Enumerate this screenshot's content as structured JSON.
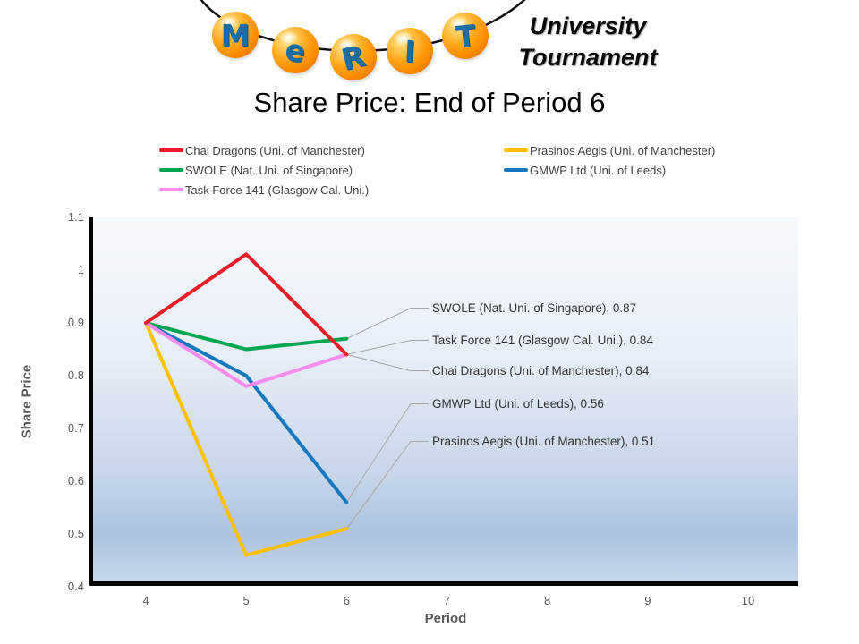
{
  "logo": {
    "letters": [
      "M",
      "e",
      "R",
      "I",
      "T"
    ],
    "tagline_line1": "University",
    "tagline_line2": "Tournament"
  },
  "chart_data": {
    "type": "line",
    "title": "Share Price: End of Period 6",
    "xlabel": "Period",
    "ylabel": "Share Price",
    "x": [
      4,
      5,
      6
    ],
    "x_ticks": [
      "4",
      "5",
      "6",
      "7",
      "8",
      "9",
      "10"
    ],
    "y_ticks": [
      "1.1",
      "1",
      "0.9",
      "0.8",
      "0.7",
      "0.6",
      "0.5",
      "0.4"
    ],
    "xlim": [
      3.5,
      10.5
    ],
    "ylim": [
      0.4,
      1.1
    ],
    "grid": false,
    "legend_position": "top",
    "series": [
      {
        "name": "Chai Dragons (Uni. of Manchester)",
        "color": "#E91D25",
        "values": [
          0.9,
          1.03,
          0.84
        ]
      },
      {
        "name": "SWOLE (Nat. Uni. of Singapore)",
        "color": "#00A550",
        "values": [
          0.9,
          0.85,
          0.87
        ]
      },
      {
        "name": "Task Force 141 (Glasgow Cal. Uni.)",
        "color": "#FB8CEF",
        "values": [
          0.9,
          0.78,
          0.84
        ]
      },
      {
        "name": "Prasinos Aegis (Uni. of Manchester)",
        "color": "#FFC000",
        "values": [
          0.9,
          0.46,
          0.51
        ]
      },
      {
        "name": "GMWP Ltd (Uni. of Leeds)",
        "color": "#1577BE",
        "values": [
          0.9,
          0.8,
          0.56
        ]
      }
    ],
    "point_labels": [
      {
        "series_index": 1,
        "text": "SWOLE (Nat. Uni. of Singapore), 0.87"
      },
      {
        "series_index": 2,
        "text": "Task Force 141 (Glasgow Cal. Uni.), 0.84"
      },
      {
        "series_index": 0,
        "text": "Chai Dragons (Uni. of Manchester), 0.84"
      },
      {
        "series_index": 4,
        "text": "GMWP Ltd (Uni. of Leeds), 0.56"
      },
      {
        "series_index": 3,
        "text": "Prasinos Aegis (Uni. of Manchester), 0.51"
      }
    ],
    "leader_line_color": "#a6a6a6",
    "axis_color": "#000000",
    "tick_text_color": "#595959"
  }
}
